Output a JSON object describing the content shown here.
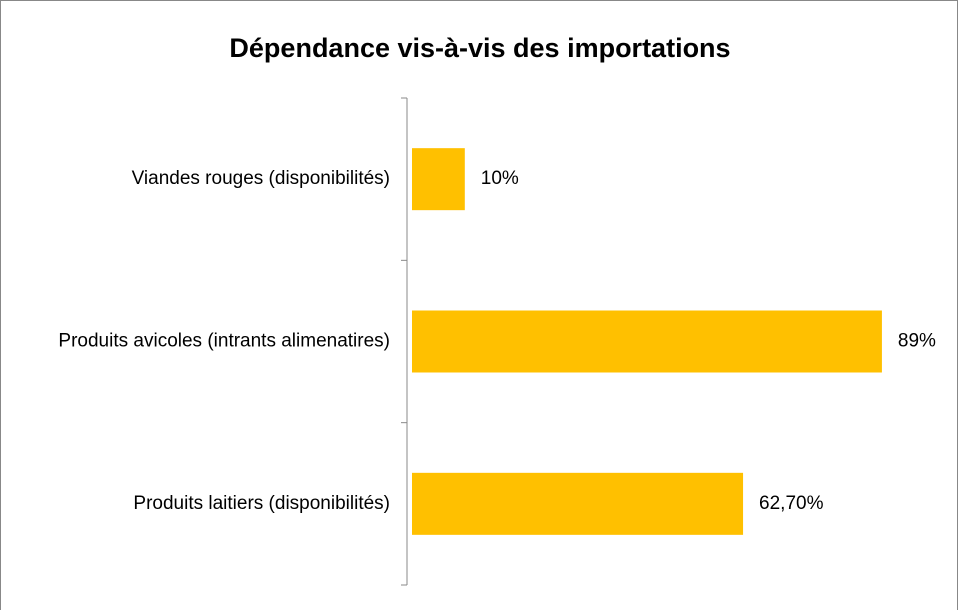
{
  "chart_data": {
    "type": "barh",
    "title": "Dépendance vis-à-vis des importations",
    "categories": [
      "Viandes rouges (disponibilités)",
      "Produits avicoles (intrants alimenatires)",
      "Produits laitiers (disponibilités)"
    ],
    "values": [
      10,
      89,
      62.7
    ],
    "value_labels": [
      "10%",
      "89%",
      "62,70%"
    ],
    "color": "#ffc000",
    "xlim": [
      0,
      100
    ]
  }
}
